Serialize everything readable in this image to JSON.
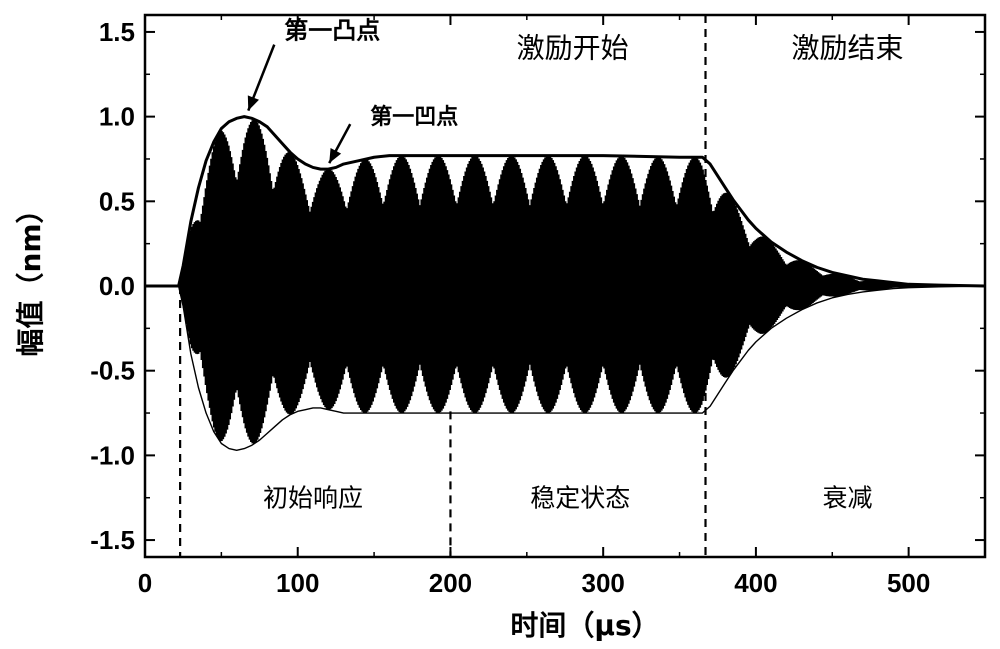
{
  "chart_data": {
    "type": "line",
    "title": "",
    "xlabel": "时间（μs）",
    "ylabel": "幅值（nm）",
    "xlim": [
      0,
      550
    ],
    "ylim": [
      -1.6,
      1.6
    ],
    "xticks": [
      0,
      100,
      200,
      300,
      400,
      500
    ],
    "yticks": [
      -1.5,
      -1.0,
      -0.5,
      0.0,
      0.5,
      1.0,
      1.5
    ],
    "xtick_labels": [
      "0",
      "100",
      "200",
      "300",
      "400",
      "500"
    ],
    "ytick_labels": [
      "-1.5",
      "-1.0",
      "-0.5",
      "0.0",
      "0.5",
      "1.0",
      "1.5"
    ],
    "grid": false,
    "colors": {
      "line": "#000000",
      "background": "#ffffff"
    },
    "envelope": {
      "name": "",
      "x": [
        0,
        22,
        25,
        30,
        35,
        40,
        45,
        50,
        55,
        60,
        65,
        70,
        75,
        80,
        85,
        90,
        95,
        100,
        105,
        110,
        115,
        120,
        125,
        130,
        140,
        150,
        160,
        170,
        180,
        200,
        250,
        300,
        350,
        365,
        370,
        375,
        380,
        385,
        390,
        395,
        400,
        410,
        420,
        430,
        440,
        450,
        460,
        470,
        480,
        490,
        500,
        520,
        550
      ],
      "upper": [
        0.0,
        0.0,
        0.12,
        0.38,
        0.58,
        0.74,
        0.85,
        0.93,
        0.97,
        0.99,
        1.0,
        0.99,
        0.97,
        0.94,
        0.89,
        0.84,
        0.79,
        0.75,
        0.72,
        0.7,
        0.69,
        0.69,
        0.7,
        0.72,
        0.74,
        0.76,
        0.77,
        0.77,
        0.77,
        0.77,
        0.77,
        0.77,
        0.76,
        0.76,
        0.72,
        0.65,
        0.58,
        0.51,
        0.45,
        0.39,
        0.34,
        0.26,
        0.2,
        0.15,
        0.11,
        0.08,
        0.06,
        0.04,
        0.03,
        0.02,
        0.01,
        0.005,
        0.0
      ],
      "lower": [
        0.0,
        0.0,
        -0.12,
        -0.4,
        -0.6,
        -0.75,
        -0.86,
        -0.93,
        -0.96,
        -0.97,
        -0.96,
        -0.94,
        -0.91,
        -0.87,
        -0.83,
        -0.79,
        -0.76,
        -0.74,
        -0.73,
        -0.72,
        -0.72,
        -0.73,
        -0.74,
        -0.75,
        -0.75,
        -0.75,
        -0.75,
        -0.75,
        -0.75,
        -0.75,
        -0.75,
        -0.75,
        -0.75,
        -0.75,
        -0.71,
        -0.64,
        -0.57,
        -0.5,
        -0.44,
        -0.38,
        -0.33,
        -0.25,
        -0.19,
        -0.14,
        -0.1,
        -0.07,
        -0.05,
        -0.035,
        -0.025,
        -0.015,
        -0.01,
        -0.005,
        0.0
      ]
    },
    "oscillation_period_us": 1.8,
    "beat_period_us": 24,
    "markers": [
      {
        "x": 23,
        "label": ""
      },
      {
        "x": 200,
        "label": ""
      },
      {
        "x": 367,
        "label": ""
      }
    ],
    "annotations": [
      {
        "text": "第一凸点",
        "x": 65,
        "y": 1.0
      },
      {
        "text": "第一凹点",
        "x": 118,
        "y": 0.69
      }
    ],
    "region_labels_top": [
      {
        "text": "激励开始",
        "x": 280,
        "y": 1.42
      },
      {
        "text": "激励结束",
        "x": 460,
        "y": 1.42
      }
    ],
    "region_labels_bottom": [
      {
        "text": "初始响应",
        "x": 110,
        "y": -1.22
      },
      {
        "text": "稳定状态",
        "x": 285,
        "y": -1.22
      },
      {
        "text": "衰减",
        "x": 460,
        "y": -1.22
      }
    ]
  }
}
